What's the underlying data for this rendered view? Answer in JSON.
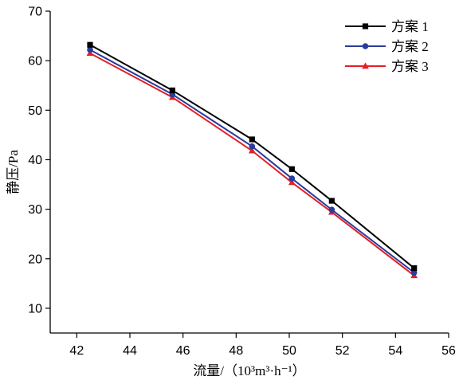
{
  "chart_data": {
    "type": "line",
    "xlabel": "流量/（10³m³·h⁻¹）",
    "ylabel": "静压/Pa",
    "xlim": [
      41,
      56
    ],
    "ylim": [
      5,
      70
    ],
    "xticks": [
      42,
      44,
      46,
      48,
      50,
      52,
      54,
      56
    ],
    "yticks": [
      10,
      20,
      30,
      40,
      50,
      60,
      70
    ],
    "x": [
      42.5,
      45.6,
      48.6,
      50.1,
      51.6,
      54.7
    ],
    "series": [
      {
        "name": "方案 1",
        "color": "#000000",
        "marker": "square",
        "values": [
          63.2,
          54.0,
          44.1,
          38.1,
          31.7,
          18.1
        ]
      },
      {
        "name": "方案 2",
        "color": "#2a3b9a",
        "marker": "circle",
        "values": [
          62.2,
          53.2,
          42.7,
          36.2,
          29.9,
          17.2
        ]
      },
      {
        "name": "方案 3",
        "color": "#e0202a",
        "marker": "triangle",
        "values": [
          61.5,
          52.6,
          41.8,
          35.4,
          29.4,
          16.6
        ]
      }
    ],
    "legend_position": "top-right",
    "grid": false
  }
}
